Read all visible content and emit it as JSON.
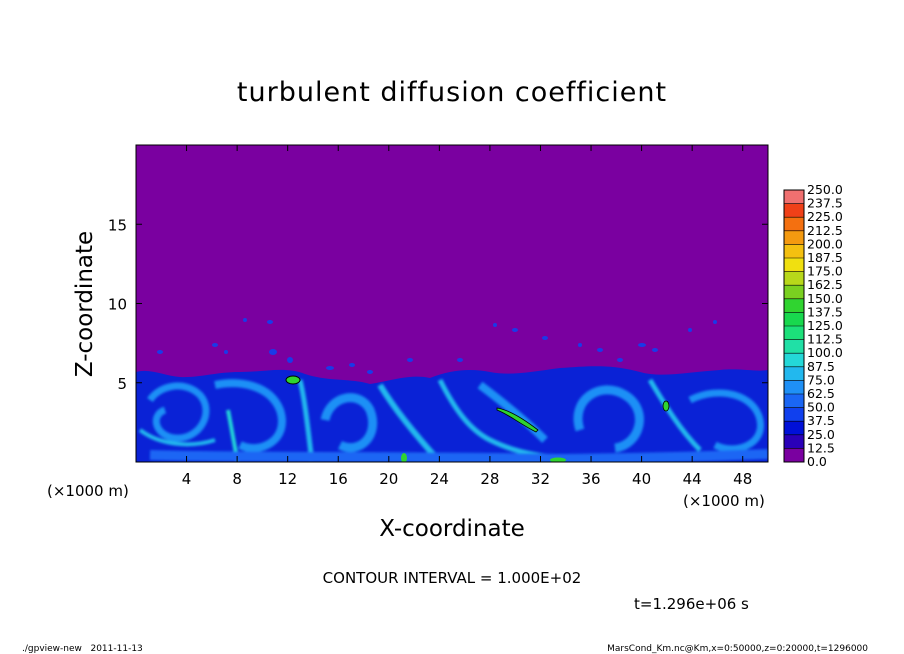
{
  "chart_data": {
    "type": "heatmap",
    "title": "turbulent diffusion coefficient",
    "xlabel": "X-coordinate",
    "ylabel": "Z-coordinate",
    "x_unit_label": "(×1000 m)",
    "z_unit_label": "(×1000 m)",
    "xlim": [
      0,
      50
    ],
    "ylim": [
      0,
      20
    ],
    "x_ticks": [
      4,
      8,
      12,
      16,
      20,
      24,
      28,
      32,
      36,
      40,
      44,
      48
    ],
    "y_ticks": [
      5,
      10,
      15
    ],
    "colorbar": {
      "levels": [
        "0.0",
        "12.5",
        "25.0",
        "37.5",
        "50.0",
        "62.5",
        "75.0",
        "87.5",
        "100.0",
        "112.5",
        "125.0",
        "137.5",
        "150.0",
        "162.5",
        "175.0",
        "187.5",
        "200.0",
        "212.5",
        "225.0",
        "237.5",
        "250.0"
      ],
      "colors": [
        "#7a00a0",
        "#2a00b8",
        "#0010d8",
        "#1040ee",
        "#1a66f4",
        "#1f90f6",
        "#22b8ee",
        "#24d8d8",
        "#20e0a6",
        "#1ce07a",
        "#18d84e",
        "#30d430",
        "#7ad020",
        "#b8d81a",
        "#f0e010",
        "#f4c010",
        "#f49a10",
        "#f47010",
        "#f04018",
        "#f07070"
      ]
    },
    "field_description_values": {
      "background_level": "0.0",
      "boundary_layer_top_km": 6,
      "contour_level": "100.0"
    },
    "contour_interval_text": "CONTOUR INTERVAL = 1.000E+02",
    "time_text": "t=1.296e+06 s"
  },
  "footer": {
    "left": "./gpview-new   2011-11-13",
    "right": "MarsCond_Km.nc@Km,x=0:50000,z=0:20000,t=1296000"
  },
  "colors": {
    "background_field": "#7a00a0"
  }
}
